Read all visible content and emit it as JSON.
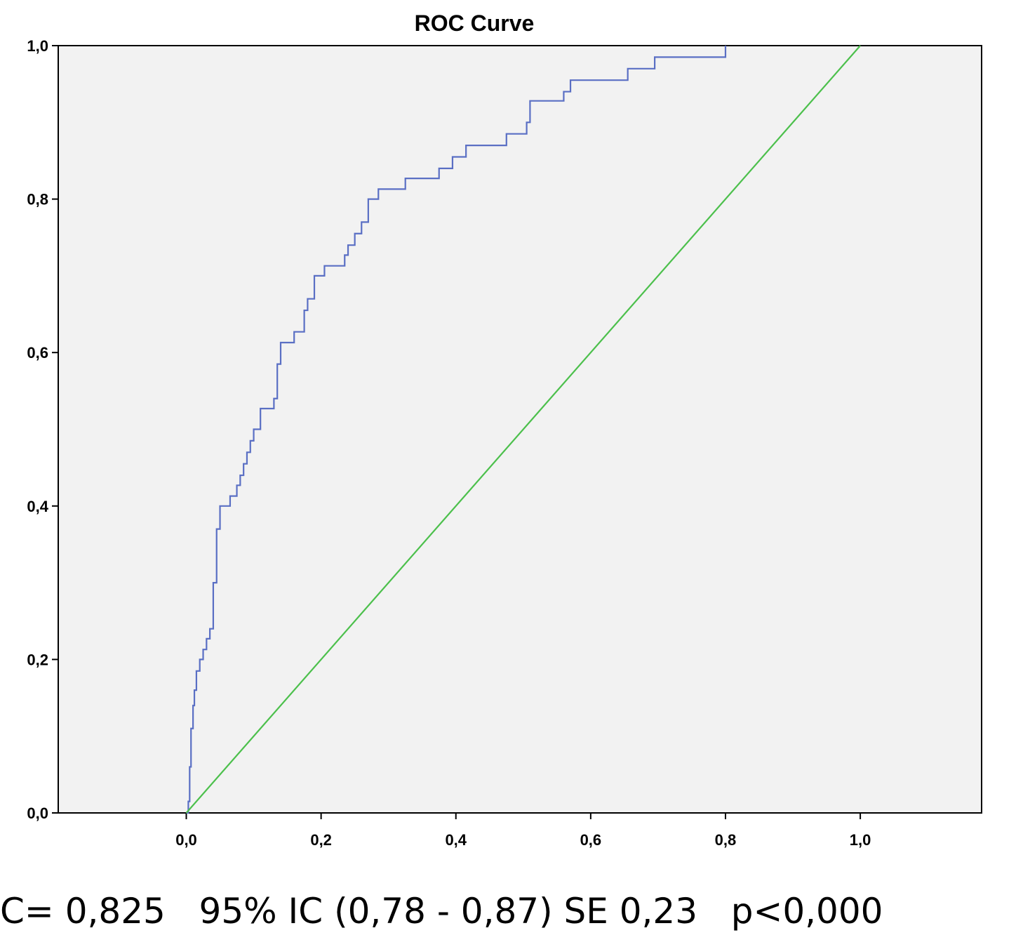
{
  "chart_data": {
    "type": "line",
    "title": "ROC Curve",
    "xlabel": "",
    "ylabel": "",
    "xlim": [
      -0.19,
      1.18
    ],
    "ylim": [
      0,
      1
    ],
    "x_ticks": [
      "0,0",
      "0,2",
      "0,4",
      "0,6",
      "0,8",
      "1,0"
    ],
    "x_tick_values": [
      0,
      0.2,
      0.4,
      0.6,
      0.8,
      1.0
    ],
    "y_ticks": [
      "0,0",
      "0,2",
      "0,4",
      "0,6",
      "0,8",
      "1,0"
    ],
    "y_tick_values": [
      0,
      0.2,
      0.4,
      0.6,
      0.8,
      1.0
    ],
    "grid": false,
    "background_color": "#f2f2f2",
    "series": [
      {
        "color": "#5a6fc4",
        "step": true,
        "x": [
          0,
          0.003,
          0.005,
          0.007,
          0.01,
          0.012,
          0.015,
          0.02,
          0.025,
          0.03,
          0.035,
          0.04,
          0.045,
          0.05,
          0.055,
          0.065,
          0.075,
          0.08,
          0.085,
          0.09,
          0.095,
          0.1,
          0.11,
          0.13,
          0.135,
          0.14,
          0.16,
          0.175,
          0.18,
          0.19,
          0.205,
          0.235,
          0.24,
          0.25,
          0.26,
          0.27,
          0.285,
          0.325,
          0.375,
          0.395,
          0.415,
          0.475,
          0.505,
          0.51,
          0.555,
          0.56,
          0.57,
          0.655,
          0.695,
          0.8
        ],
        "y": [
          0,
          0.015,
          0.06,
          0.11,
          0.14,
          0.16,
          0.185,
          0.2,
          0.213,
          0.227,
          0.24,
          0.3,
          0.37,
          0.4,
          0.4,
          0.413,
          0.427,
          0.44,
          0.455,
          0.47,
          0.485,
          0.5,
          0.527,
          0.54,
          0.585,
          0.613,
          0.627,
          0.655,
          0.67,
          0.7,
          0.713,
          0.727,
          0.74,
          0.755,
          0.77,
          0.8,
          0.813,
          0.827,
          0.84,
          0.855,
          0.87,
          0.885,
          0.9,
          0.928,
          0.928,
          0.94,
          0.955,
          0.97,
          0.985,
          1.0
        ]
      },
      {
        "color": "#4cc04c",
        "step": false,
        "x": [
          0,
          1
        ],
        "y": [
          0,
          1
        ]
      }
    ]
  },
  "caption": "C= 0,825   95% IC (0,78 - 0,87) SE 0,23   p<0,000"
}
